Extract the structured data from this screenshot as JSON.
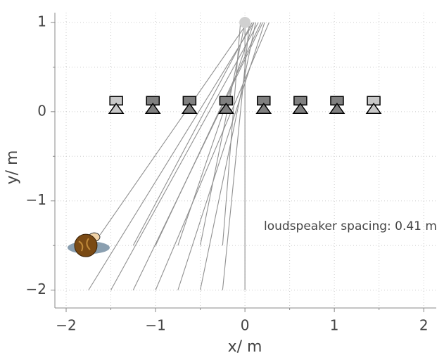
{
  "chart_data": {
    "type": "scatter",
    "xlabel": "x/ m",
    "ylabel": "y/ m",
    "annotation": "loudspeaker spacing: 0.41 m",
    "xlim": [
      -2.126,
      2.14
    ],
    "ylim": [
      -2.2,
      1.11
    ],
    "xticks": [
      {
        "value": -2,
        "label": "−2"
      },
      {
        "value": -1,
        "label": "−1"
      },
      0,
      1,
      2
    ],
    "yticks": [
      {
        "value": -2,
        "label": "−2"
      },
      {
        "value": -1,
        "label": "−1"
      },
      0,
      1
    ],
    "minor_xticks": [
      -1.5,
      -0.5,
      0.5,
      1.5
    ],
    "minor_yticks": [
      -1.5,
      -0.5,
      0.5
    ],
    "grid": true,
    "loudspeakers": {
      "x": [
        -1.44,
        -1.03,
        -0.62,
        -0.21,
        0.21,
        0.62,
        1.03,
        1.44
      ],
      "y": [
        0.06,
        0.06,
        0.06,
        0.06,
        0.06,
        0.06,
        0.06,
        0.06
      ],
      "colors": [
        "#c8c8c8",
        "#808080",
        "#808080",
        "#808080",
        "#808080",
        "#808080",
        "#808080",
        "#c8c8c8"
      ]
    },
    "source": {
      "x": 0,
      "y": 1,
      "color": "#d0d0d0"
    },
    "listener": {
      "x": -1.78,
      "y": -1.5
    },
    "rays": {
      "color": "#909090",
      "x0": [
        -1.75,
        -1.5,
        -1.25,
        -1.0,
        -0.75,
        -0.5,
        -0.25,
        0,
        -1.25,
        -1.0,
        -0.75,
        -0.5,
        -0.25,
        -1.62
      ],
      "y0": [
        -2,
        -2,
        -2,
        -2,
        -2,
        -2,
        -2,
        -2,
        -1.5,
        -1.5,
        -1.5,
        -1.5,
        -1.5,
        -1.38
      ],
      "x1": [
        0.1,
        0.15,
        0.2,
        0.27,
        0.22,
        0.12,
        0.05,
        0,
        0.08,
        0.18,
        0.1,
        0.0,
        -0.05,
        0.03
      ],
      "y1": [
        1,
        1,
        1,
        1,
        1,
        1,
        1,
        1,
        1,
        1,
        1,
        1,
        1,
        1
      ]
    }
  }
}
